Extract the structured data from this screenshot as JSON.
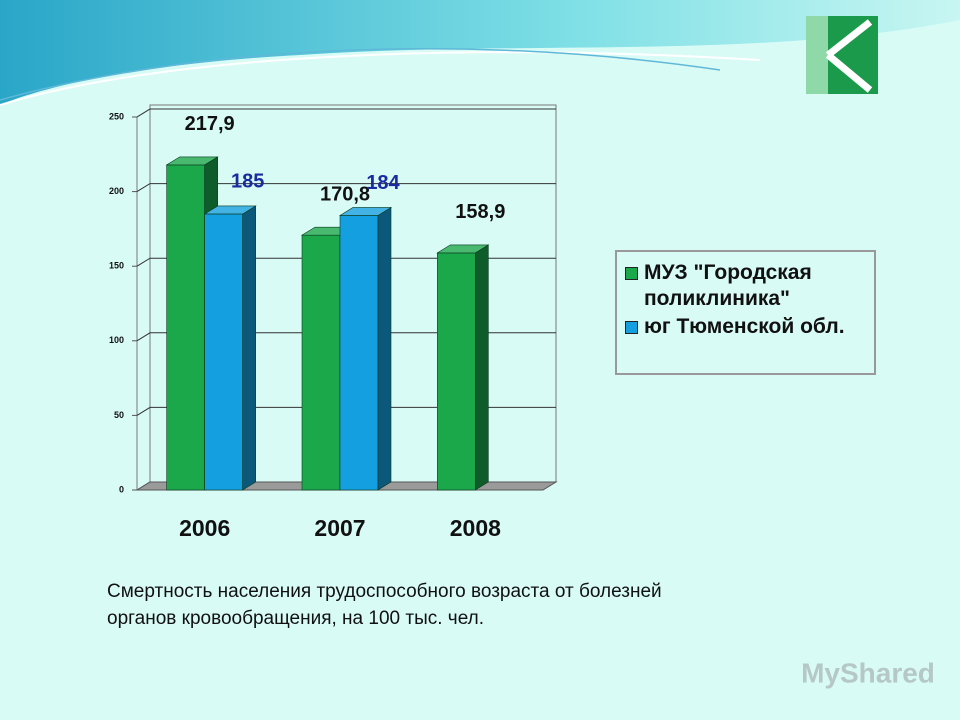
{
  "chart_data": {
    "type": "bar3d",
    "categories": [
      "2006",
      "2007",
      "2008"
    ],
    "series": [
      {
        "name": "МУЗ \"Городская поликлиника\"",
        "color": "#1aa84a",
        "values": [
          217.9,
          170.8,
          158.9
        ],
        "value_labels": [
          "217,9",
          "170,8",
          "158,9"
        ],
        "label_color": "#111111"
      },
      {
        "name": "юг Тюменской обл.",
        "color": "#14a0e0",
        "values": [
          185,
          184,
          null
        ],
        "value_labels": [
          "185",
          "184",
          null
        ],
        "label_color": "#1a2aa0"
      }
    ],
    "ylim": [
      0,
      250
    ],
    "yticks": [
      0,
      50,
      100,
      150,
      200,
      250
    ],
    "grid": true,
    "legend": "right",
    "caption": "Смертность населения трудоспособного возраста от болезней органов кровообращения, на 100 тыс. чел.",
    "watermark": "MyShared"
  }
}
